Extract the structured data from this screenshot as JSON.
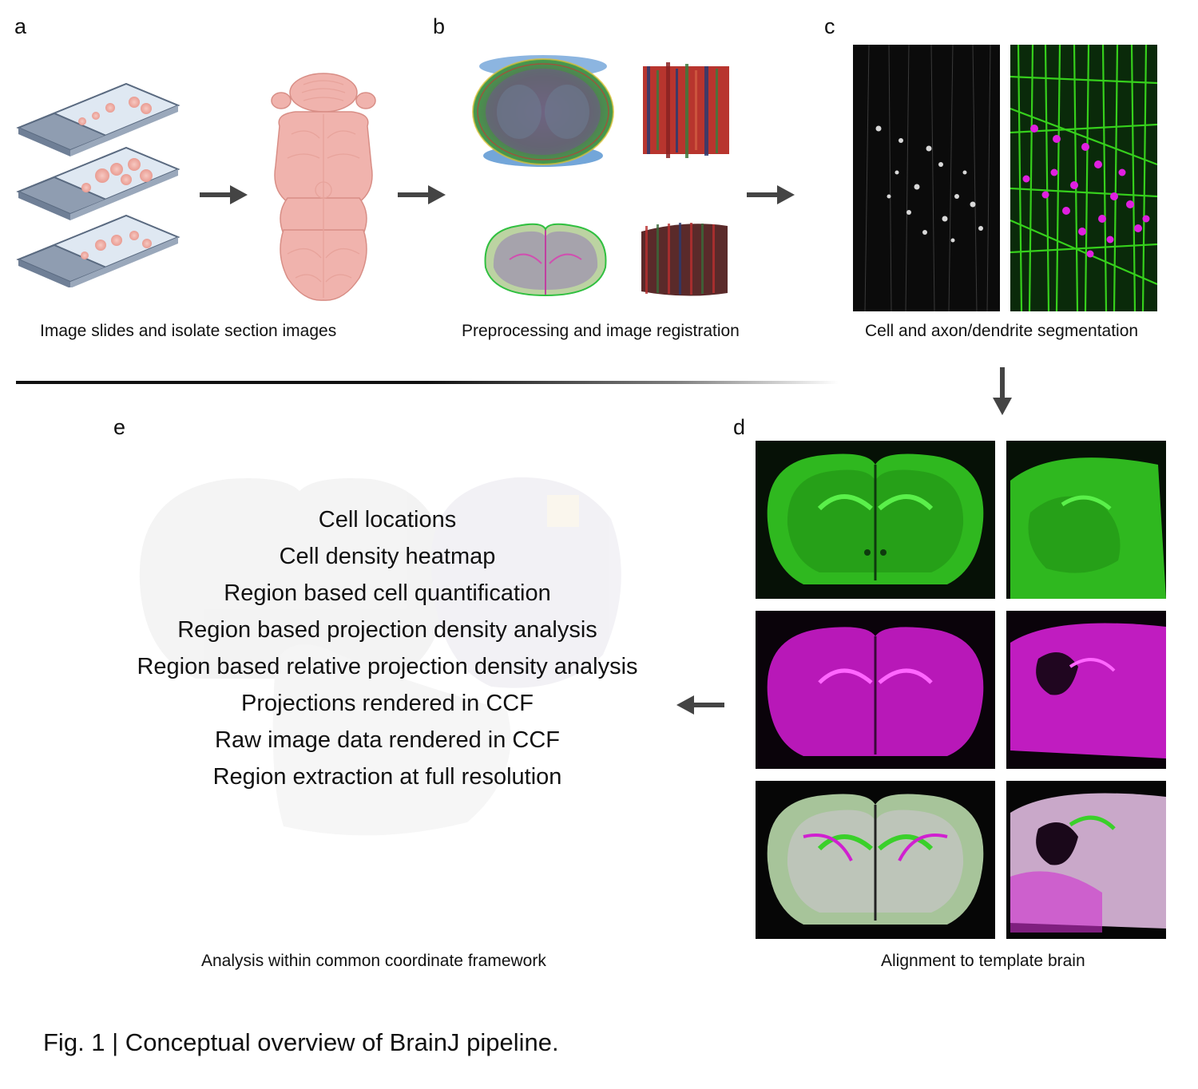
{
  "panels": {
    "a": {
      "letter": "a",
      "caption": "Image slides and isolate section images"
    },
    "b": {
      "letter": "b",
      "caption": "Preprocessing and image registration"
    },
    "c": {
      "letter": "c",
      "caption": "Cell and axon/dendrite segmentation"
    },
    "d": {
      "letter": "d",
      "caption": "Alignment to template brain"
    },
    "e": {
      "letter": "e",
      "caption": "Analysis within common coordinate framework",
      "items": [
        "Cell locations",
        "Cell density heatmap",
        "Region based cell quantification",
        "Region based projection density analysis",
        "Region based relative projection density analysis",
        "Projections rendered in CCF",
        "Raw image data rendered in CCF",
        "Region extraction at full resolution"
      ]
    }
  },
  "figure_title": "Fig. 1 | Conceptual overview of BrainJ pipeline.",
  "colors": {
    "arrow": "#444444",
    "fluorescence_green": "#2fd11f",
    "fluorescence_magenta": "#e01ee0",
    "tissue_pink": "#f2b6b0",
    "slide_glass": "#c9d6e6"
  }
}
